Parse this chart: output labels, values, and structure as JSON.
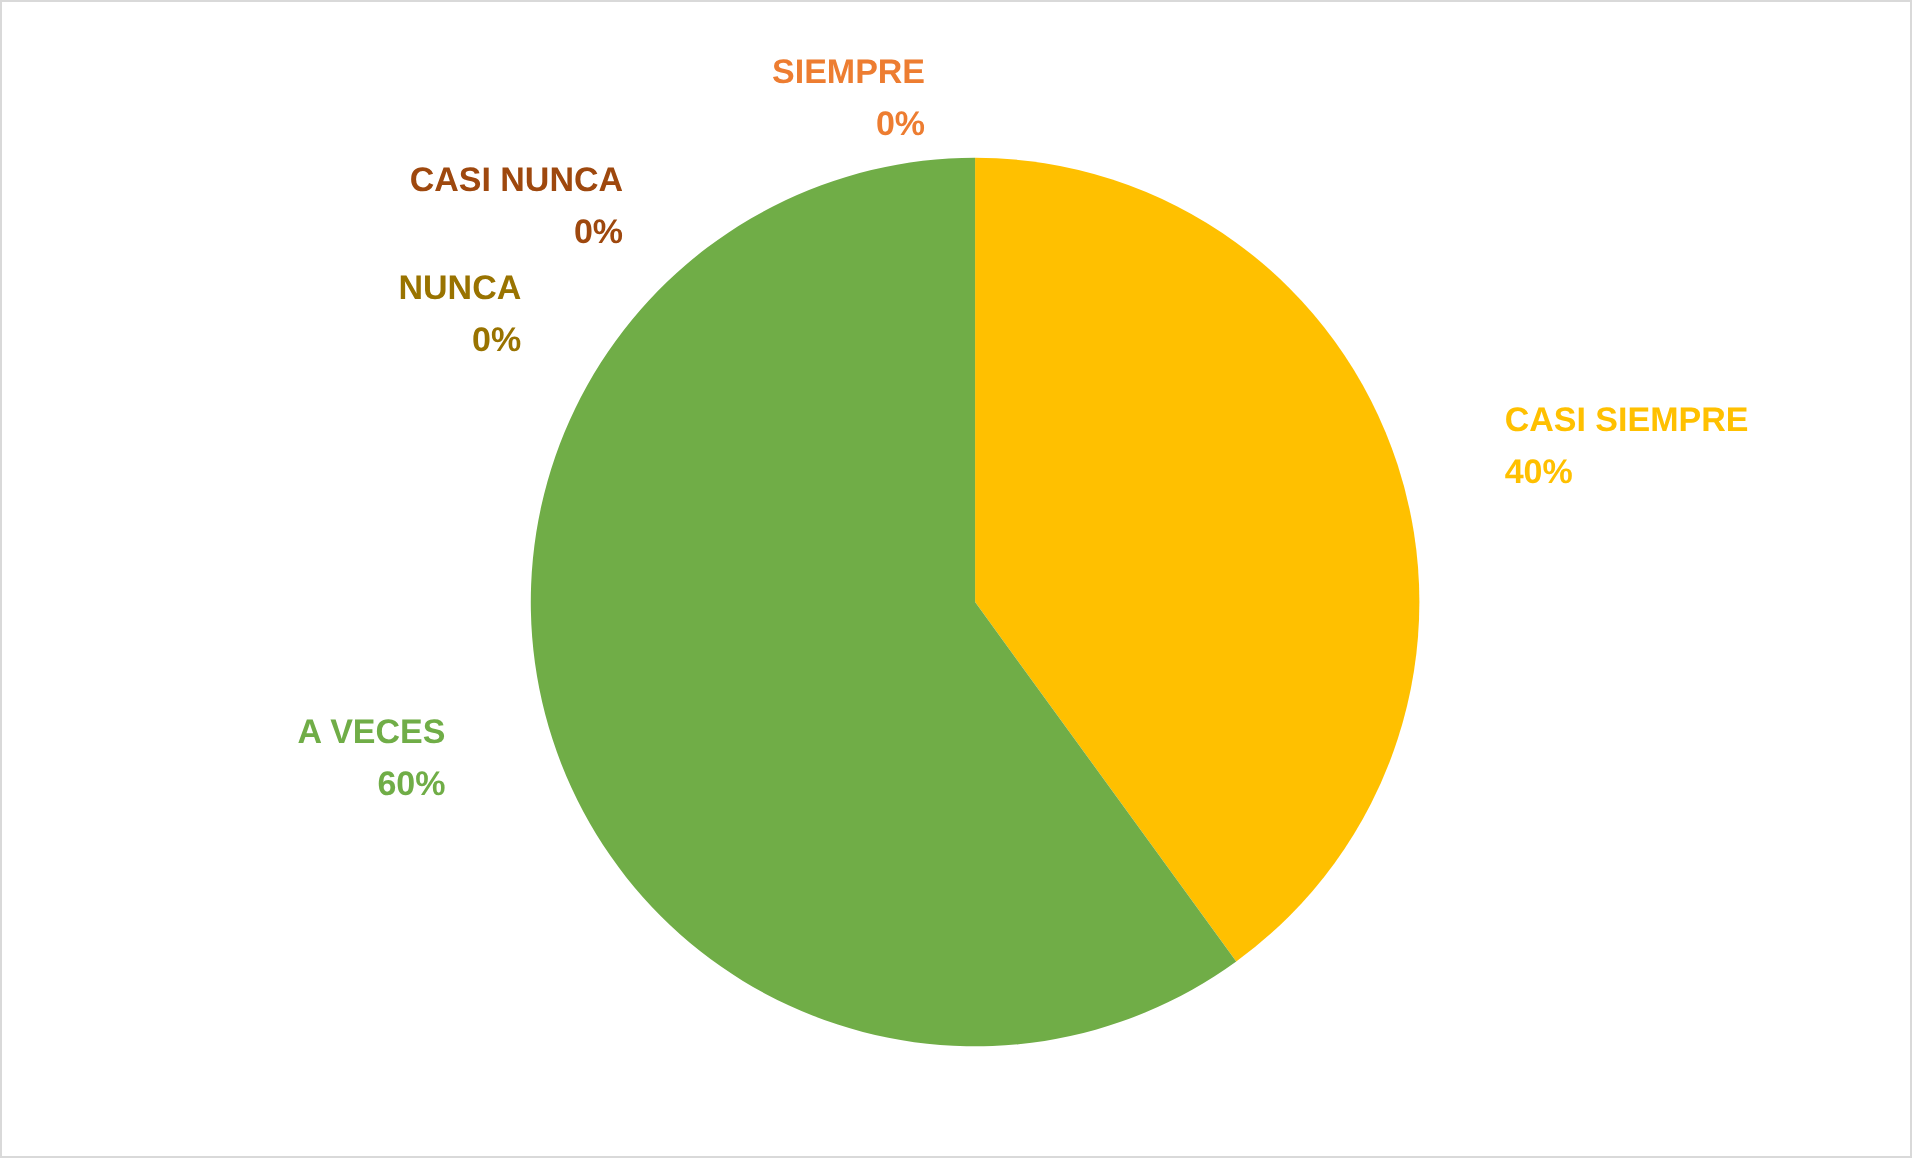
{
  "chart_data": {
    "type": "pie",
    "categories": [
      "SIEMPRE",
      "CASI SIEMPRE",
      "A VECES",
      "CASI NUNCA",
      "NUNCA"
    ],
    "values": [
      0,
      40,
      60,
      0,
      0
    ],
    "colors": [
      "#ed7d31",
      "#ffc000",
      "#70ad47",
      "#9e480e",
      "#997300"
    ],
    "value_labels": [
      "0%",
      "40%",
      "60%",
      "0%",
      "0%"
    ],
    "legend": false
  }
}
